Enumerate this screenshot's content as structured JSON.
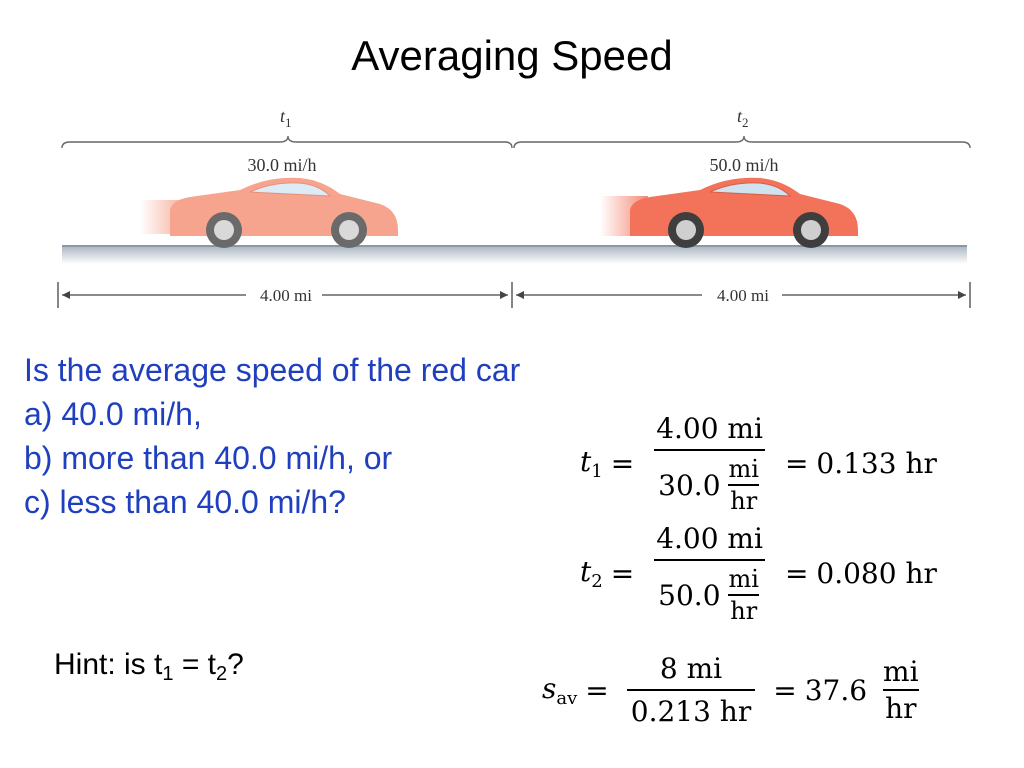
{
  "title": "Averaging Speed",
  "figure": {
    "t1_label": "t",
    "t1_sub": "1",
    "t2_label": "t",
    "t2_sub": "2",
    "speed1": "30.0 mi/h",
    "speed2": "50.0 mi/h",
    "dist1": "4.00 mi",
    "dist2": "4.00 mi",
    "car_color": "#f2735a",
    "car_color_faded": "#f7a48f",
    "road_color": "#c9d3dc"
  },
  "question": {
    "line1": "Is the average speed of the red car",
    "line2": "a) 40.0 mi/h,",
    "line3": "b) more than 40.0 mi/h, or",
    "line4": "c) less than 40.0 mi/h?",
    "color": "#1f3fbf"
  },
  "hint": {
    "prefix": "Hint: is t",
    "sub1": "1",
    "mid": " = t",
    "sub2": "2",
    "suffix": "?"
  },
  "equations": {
    "eq1": {
      "lhs": "t",
      "lhs_sub": "1",
      "num": "4.00 mi",
      "den_value": "30.0",
      "den_unit_num": "mi",
      "den_unit_den": "hr",
      "result": "0.133",
      "result_unit": "hr"
    },
    "eq2": {
      "lhs": "t",
      "lhs_sub": "2",
      "num": "4.00 mi",
      "den_value": "50.0",
      "den_unit_num": "mi",
      "den_unit_den": "hr",
      "result": "0.080",
      "result_unit": "hr"
    },
    "eq3": {
      "lhs": "s",
      "lhs_sub": "av",
      "num": "8 mi",
      "den": "0.213 hr",
      "result": "37.6",
      "result_unit_num": "mi",
      "result_unit_den": "hr"
    }
  }
}
